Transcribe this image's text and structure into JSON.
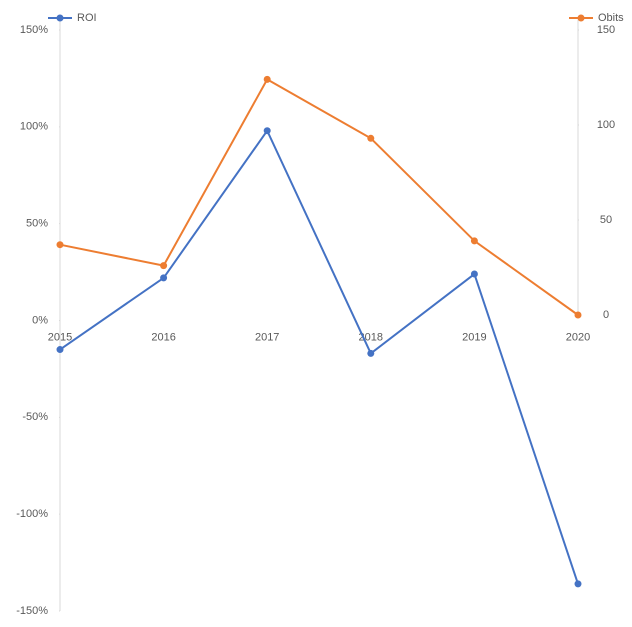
{
  "chart_data": {
    "type": "line",
    "categories": [
      "2015",
      "2016",
      "2017",
      "2018",
      "2019",
      "2020"
    ],
    "series": [
      {
        "name": "ROI",
        "color": "#4472c4",
        "values": [
          -15,
          22,
          98,
          -17,
          24,
          -136
        ]
      },
      {
        "name": "Obits",
        "color": "#ed7d31",
        "axis": "y2",
        "values": [
          37,
          26,
          124,
          93,
          39,
          0
        ]
      }
    ],
    "ylim": [
      -150,
      150
    ],
    "yticks": [
      {
        "value": -150,
        "label": "-150%"
      },
      {
        "value": -100,
        "label": "-100%"
      },
      {
        "value": -50,
        "label": "-50%"
      },
      {
        "value": 0,
        "label": "0%"
      },
      {
        "value": 50,
        "label": "50%"
      },
      {
        "value": 100,
        "label": "100%"
      },
      {
        "value": 150,
        "label": "150%"
      }
    ],
    "y2lim": [
      0,
      150
    ],
    "y2ticks": [
      0,
      50,
      100,
      150
    ],
    "grid": false
  }
}
